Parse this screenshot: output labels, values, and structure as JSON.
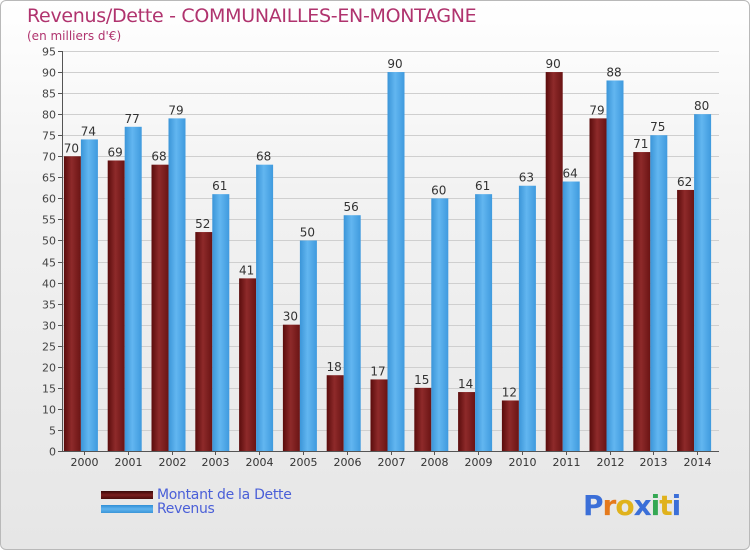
{
  "header": {
    "title": "Revenus/Dette - COMMUNAILLES-EN-MONTAGNE",
    "subtitle": "(en milliers d'€)"
  },
  "legend": {
    "items": [
      {
        "label": "Montant de la Dette",
        "color": "#7a1f1f"
      },
      {
        "label": "Revenus",
        "color": "#4ea6e6"
      }
    ]
  },
  "logo": {
    "text": "Proxiti",
    "letter_colors": [
      "#3b6fd8",
      "#e57a1c",
      "#e0b21c",
      "#3b6fd8",
      "#34a853",
      "#e0b21c",
      "#3b6fd8"
    ]
  },
  "chart_data": {
    "type": "bar",
    "categories": [
      "2000",
      "2001",
      "2002",
      "2003",
      "2004",
      "2005",
      "2006",
      "2007",
      "2008",
      "2009",
      "2010",
      "2011",
      "2012",
      "2013",
      "2014"
    ],
    "series": [
      {
        "name": "Montant de la Dette",
        "color": "#7a1f1f",
        "values": [
          70,
          69,
          68,
          52,
          41,
          30,
          18,
          17,
          15,
          14,
          12,
          90,
          79,
          71,
          62
        ]
      },
      {
        "name": "Revenus",
        "color": "#4ea6e6",
        "values": [
          74,
          77,
          79,
          61,
          68,
          50,
          56,
          90,
          60,
          61,
          63,
          64,
          88,
          75,
          80
        ]
      }
    ],
    "ylim": [
      0,
      95
    ],
    "yticks": [
      0,
      5,
      10,
      15,
      20,
      25,
      30,
      35,
      40,
      45,
      50,
      55,
      60,
      65,
      70,
      75,
      80,
      85,
      90,
      95
    ],
    "grid": true
  }
}
